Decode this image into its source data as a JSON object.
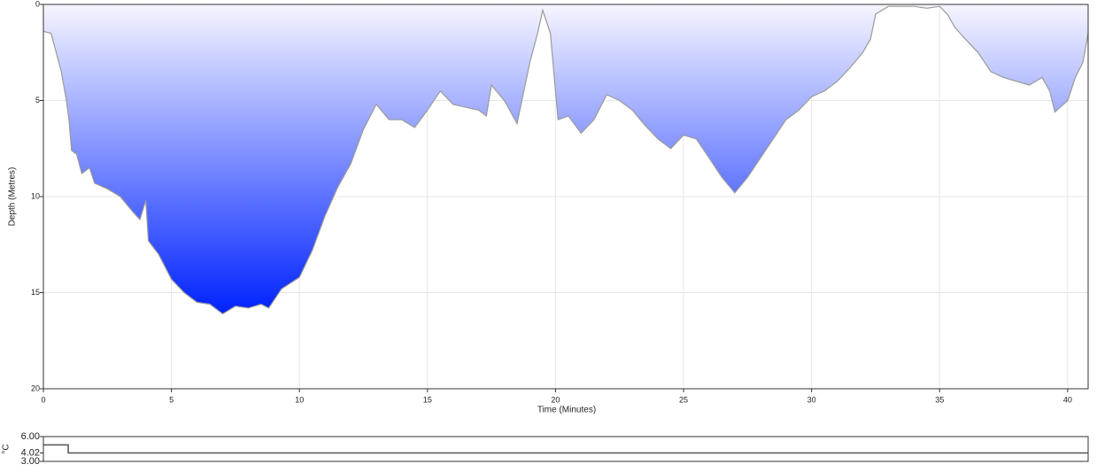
{
  "chart_data": [
    {
      "type": "area",
      "x_label": "Time (Minutes)",
      "y_label": "Depth (Metres)",
      "x": [
        0,
        0.3,
        0.5,
        0.7,
        0.9,
        1.0,
        1.1,
        1.3,
        1.5,
        1.8,
        2.0,
        2.5,
        3.0,
        3.5,
        3.77,
        4.0,
        4.1,
        4.5,
        5.0,
        5.5,
        6.0,
        6.5,
        7.0,
        7.5,
        8.0,
        8.5,
        8.8,
        9.3,
        10.0,
        10.5,
        11.0,
        11.5,
        12.0,
        12.5,
        13.0,
        13.5,
        14.0,
        14.5,
        15.0,
        15.5,
        16.0,
        17.0,
        17.3,
        17.5,
        18.0,
        18.5,
        19.0,
        19.3,
        19.5,
        19.8,
        20.0,
        20.1,
        20.5,
        21.0,
        21.5,
        22.0,
        22.5,
        23.0,
        23.5,
        24.0,
        24.5,
        25.0,
        25.5,
        26.0,
        26.5,
        27.0,
        27.5,
        28.0,
        28.5,
        29.0,
        29.5,
        30.0,
        30.5,
        31.0,
        31.5,
        32.0,
        32.3,
        32.5,
        33.0,
        34.0,
        34.5,
        35.0,
        35.3,
        35.6,
        36.0,
        36.5,
        37.0,
        37.5,
        38.0,
        38.5,
        39.0,
        39.3,
        39.5,
        40.0,
        40.3,
        40.6,
        40.8
      ],
      "values": [
        1.4,
        1.5,
        2.5,
        3.5,
        5.0,
        6.0,
        7.6,
        7.8,
        8.8,
        8.5,
        9.3,
        9.6,
        10.0,
        10.8,
        11.2,
        10.2,
        12.3,
        13.0,
        14.3,
        15.0,
        15.5,
        15.6,
        16.1,
        15.7,
        15.8,
        15.6,
        15.8,
        14.8,
        14.2,
        12.8,
        11.0,
        9.5,
        8.3,
        6.5,
        5.2,
        6.0,
        6.0,
        6.4,
        5.5,
        4.5,
        5.2,
        5.5,
        5.8,
        4.2,
        5.0,
        6.2,
        3.0,
        1.5,
        0.3,
        1.5,
        4.5,
        6.0,
        5.8,
        6.7,
        6.0,
        4.7,
        5.0,
        5.5,
        6.3,
        7.0,
        7.5,
        6.8,
        7.0,
        8.0,
        9.0,
        9.8,
        9.0,
        8.0,
        7.0,
        6.0,
        5.5,
        4.8,
        4.5,
        4.0,
        3.3,
        2.5,
        1.8,
        0.5,
        0.1,
        0.1,
        0.2,
        0.1,
        0.5,
        1.2,
        1.8,
        2.5,
        3.5,
        3.8,
        4.0,
        4.2,
        3.8,
        4.5,
        5.6,
        5.0,
        3.8,
        3.0,
        1.5
      ],
      "xlim": [
        0,
        40.8
      ],
      "ylim": [
        0,
        20
      ],
      "y_inverted": true,
      "xticks": [
        0,
        5,
        10,
        15,
        20,
        25,
        30,
        35,
        40
      ],
      "yticks": [
        0,
        5,
        10,
        15,
        20
      ],
      "grid": true,
      "color": "#9a9a9a",
      "fill_top": "#f6f6ff",
      "fill_bottom": "#0022ff"
    },
    {
      "type": "step",
      "y_label": "°C",
      "x": [
        0,
        0.97,
        40.8
      ],
      "values": [
        5.0,
        4.02,
        4.02
      ],
      "xlim": [
        0,
        40.8
      ],
      "ylim": [
        3,
        6
      ],
      "yticks": [
        {
          "value": 3,
          "label": "3.00"
        },
        {
          "value": 4.02,
          "label": "4.02"
        },
        {
          "value": 6,
          "label": "6.00"
        }
      ],
      "color": "#555555"
    }
  ]
}
